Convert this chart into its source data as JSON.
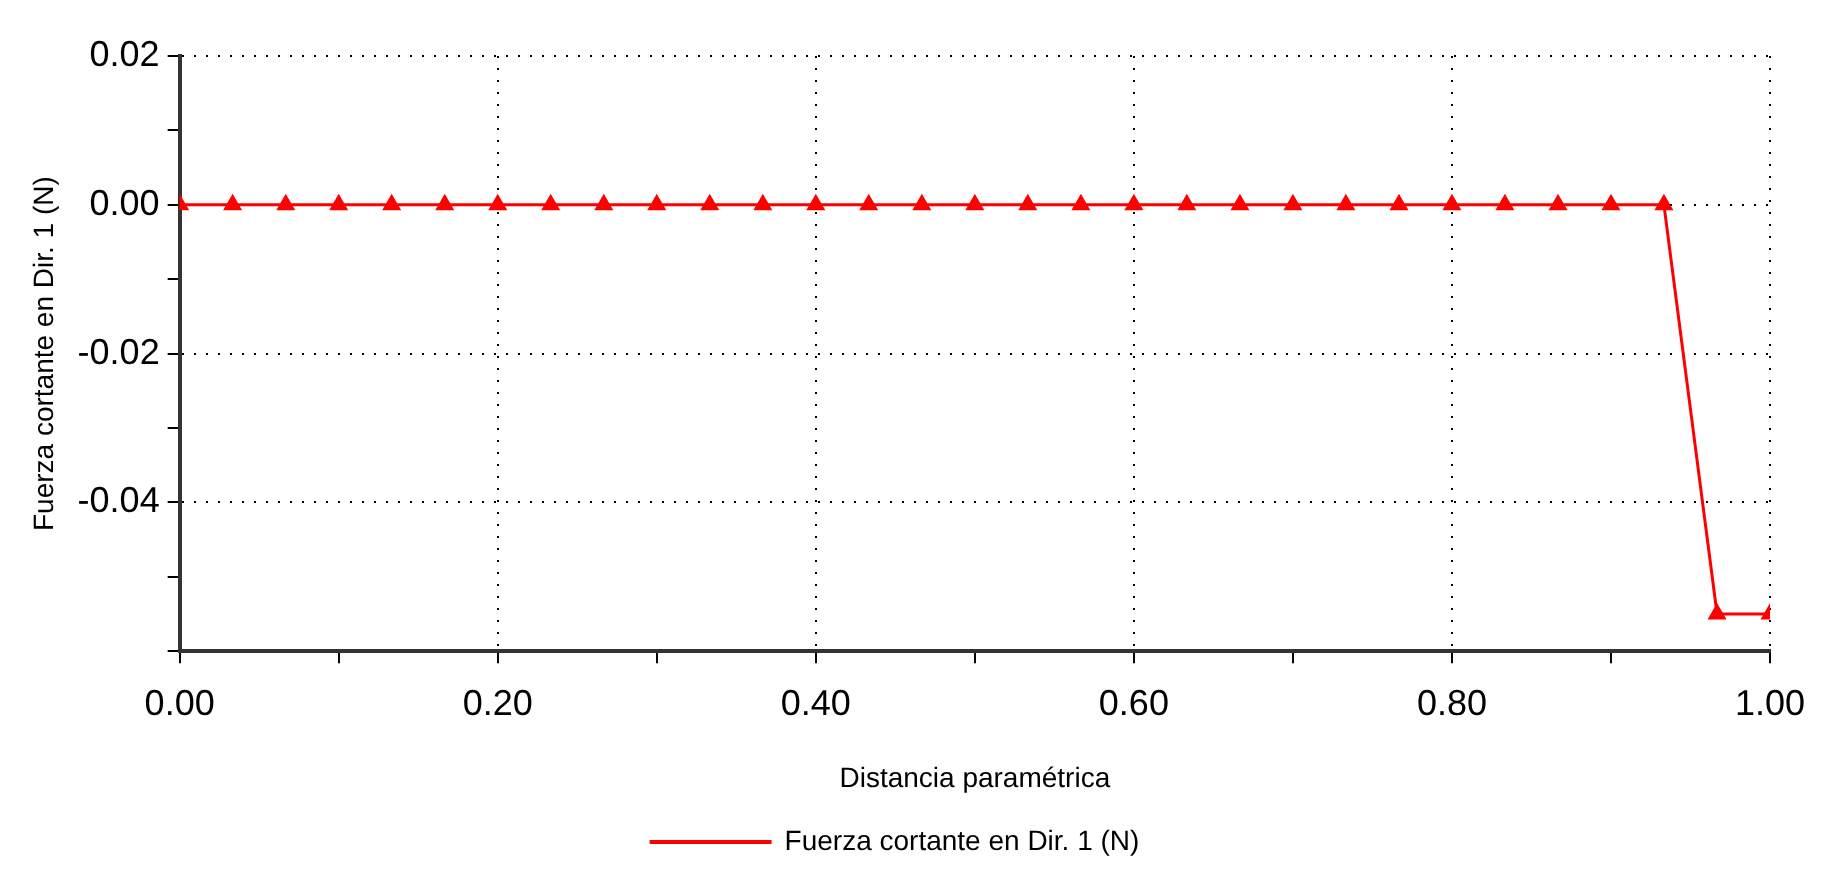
{
  "chart_data": {
    "type": "line",
    "xlabel": "Distancia paramétrica",
    "ylabel": "Fuerza cortante en Dir. 1 (N)",
    "x": [
      0,
      0.0333,
      0.0667,
      0.1,
      0.1333,
      0.1667,
      0.2,
      0.2333,
      0.2667,
      0.3,
      0.3333,
      0.3667,
      0.4,
      0.4333,
      0.4667,
      0.5,
      0.5333,
      0.5667,
      0.6,
      0.6333,
      0.6667,
      0.7,
      0.7333,
      0.7667,
      0.8,
      0.8333,
      0.8667,
      0.9,
      0.9333,
      0.9667,
      1
    ],
    "series": [
      {
        "name": "Fuerza cortante en Dir. 1 (N)",
        "color": "#ff0000",
        "values": [
          0,
          0,
          0,
          0,
          0,
          0,
          0,
          0,
          0,
          0,
          0,
          0,
          0,
          0,
          0,
          0,
          0,
          0,
          0,
          0,
          0,
          0,
          0,
          0,
          0,
          0,
          0,
          0,
          0,
          -0.055,
          -0.055
        ]
      }
    ],
    "xlim": [
      0,
      1
    ],
    "xticks": [
      {
        "value": 0,
        "label": "0.00"
      },
      {
        "value": 0.1,
        "label": null
      },
      {
        "value": 0.2,
        "label": "0.20"
      },
      {
        "value": 0.3,
        "label": null
      },
      {
        "value": 0.4,
        "label": "0.40"
      },
      {
        "value": 0.5,
        "label": null
      },
      {
        "value": 0.6,
        "label": "0.60"
      },
      {
        "value": 0.7,
        "label": null
      },
      {
        "value": 0.8,
        "label": "0.80"
      },
      {
        "value": 0.9,
        "label": null
      },
      {
        "value": 1,
        "label": "1.00"
      }
    ],
    "ylim": [
      -0.06,
      0.02
    ],
    "yticks": [
      {
        "value": -0.06,
        "label": null
      },
      {
        "value": -0.05,
        "label": null
      },
      {
        "value": -0.04,
        "label": "-0.04"
      },
      {
        "value": -0.03,
        "label": null
      },
      {
        "value": -0.02,
        "label": "-0.02"
      },
      {
        "value": -0.01,
        "label": null
      },
      {
        "value": 0,
        "label": "0.00"
      },
      {
        "value": 0.01,
        "label": null
      },
      {
        "value": 0.02,
        "label": "0.02"
      }
    ],
    "grid": true,
    "legend": "bottom",
    "marker": "triangle",
    "line_style": "solid"
  }
}
